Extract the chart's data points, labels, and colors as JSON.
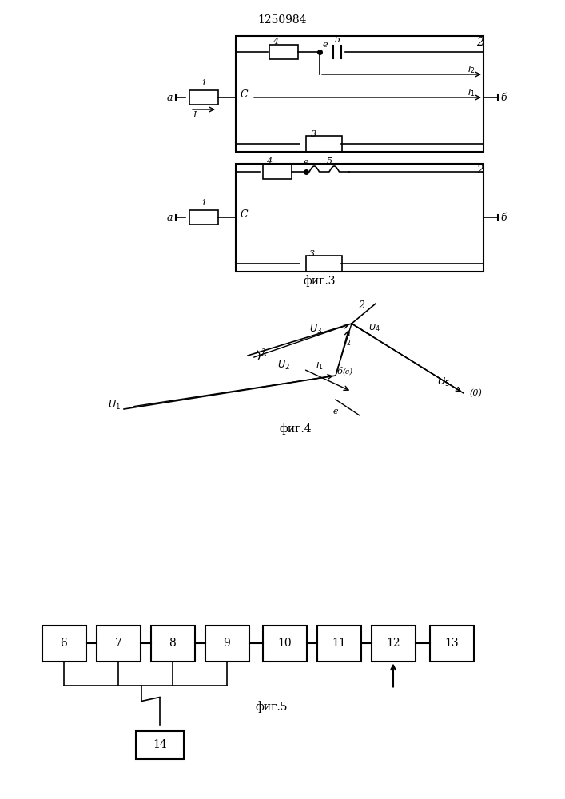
{
  "title": "1250984",
  "fig3_label": "фиг.3",
  "fig4_label": "фиг.4",
  "fig5_label": "фиг.5",
  "bg_color": "#ffffff",
  "line_color": "#000000"
}
